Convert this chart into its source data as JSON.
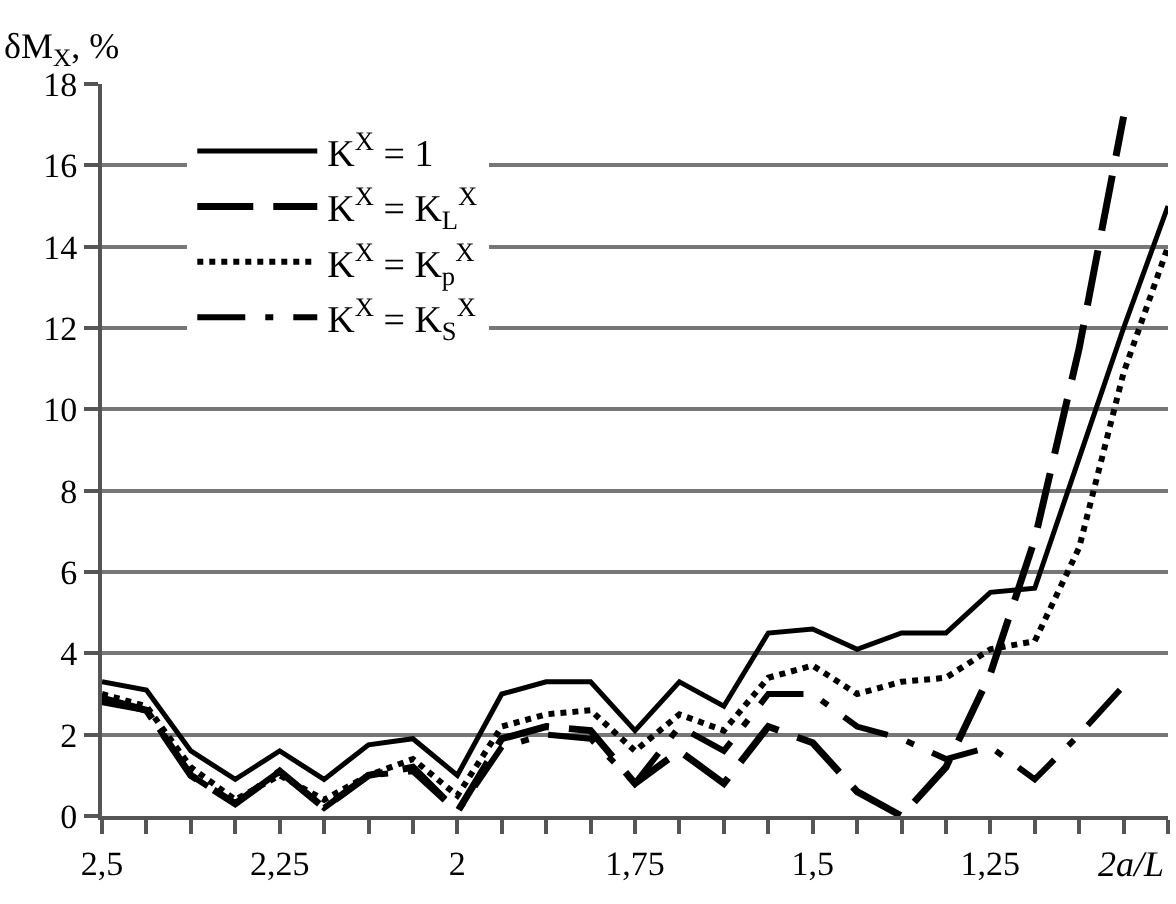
{
  "chart_data": {
    "type": "line",
    "ylabel": "δM$_{X}$, %",
    "xlabel": "2a/L",
    "x": [
      2.5,
      2.4375,
      2.375,
      2.3125,
      2.25,
      2.1875,
      2.125,
      2.0625,
      2.0,
      1.9375,
      1.875,
      1.8125,
      1.75,
      1.6875,
      1.625,
      1.5625,
      1.5,
      1.4375,
      1.375,
      1.3125,
      1.25,
      1.1875,
      1.125,
      1.0625,
      1.0
    ],
    "series": [
      {
        "name": "K$^{X}$ = 1",
        "color": "#000000",
        "line_style": "solid",
        "values": [
          3.3,
          3.1,
          1.6,
          0.9,
          1.6,
          0.9,
          1.75,
          1.9,
          1.0,
          3.0,
          3.3,
          3.3,
          2.1,
          3.3,
          2.7,
          4.5,
          4.6,
          4.1,
          4.5,
          4.5,
          5.5,
          5.6,
          8.8,
          12.0,
          15.0
        ]
      },
      {
        "name": "K$^{X}$ = K$_{L}$$^{X}$",
        "color": "#000000",
        "line_style": "dashed",
        "values": [
          2.9,
          2.6,
          1.0,
          0.3,
          1.1,
          0.2,
          1.0,
          1.2,
          0.1,
          1.9,
          2.2,
          2.1,
          0.8,
          1.6,
          0.8,
          2.2,
          1.8,
          0.6,
          0.0,
          1.2,
          3.5,
          6.8,
          11.5,
          17.2,
          null
        ]
      },
      {
        "name": "K$^{X}$ = K$_{p}$$^{X}$",
        "color": "#000000",
        "line_style": "dotted",
        "values": [
          3.0,
          2.7,
          1.2,
          0.4,
          1.0,
          0.4,
          1.0,
          1.4,
          0.5,
          2.2,
          2.5,
          2.6,
          1.6,
          2.5,
          2.1,
          3.4,
          3.7,
          3.0,
          3.3,
          3.4,
          4.1,
          4.3,
          6.6,
          10.9,
          14.0
        ]
      },
      {
        "name": "K$^{X}$ = K$_{S}$$^{X}$",
        "color": "#000000",
        "line_style": "dashdot",
        "values": [
          2.8,
          2.6,
          1.0,
          0.3,
          1.1,
          0.2,
          1.0,
          1.1,
          0.1,
          1.7,
          2.0,
          1.9,
          0.8,
          2.2,
          1.6,
          3.0,
          3.0,
          2.2,
          1.9,
          1.4,
          1.7,
          0.9,
          2.0,
          3.2,
          null
        ]
      }
    ],
    "xlim": [
      2.5,
      1.0
    ],
    "xticks": [
      {
        "value": 2.5,
        "label": "2,5"
      },
      {
        "value": 2.4375,
        "label": null
      },
      {
        "value": 2.375,
        "label": null
      },
      {
        "value": 2.3125,
        "label": null
      },
      {
        "value": 2.25,
        "label": "2,25"
      },
      {
        "value": 2.1875,
        "label": null
      },
      {
        "value": 2.125,
        "label": null
      },
      {
        "value": 2.0625,
        "label": null
      },
      2,
      {
        "value": 1.9375,
        "label": null
      },
      {
        "value": 1.875,
        "label": null
      },
      {
        "value": 1.8125,
        "label": null
      },
      {
        "value": 1.75,
        "label": "1,75"
      },
      {
        "value": 1.6875,
        "label": null
      },
      {
        "value": 1.625,
        "label": null
      },
      {
        "value": 1.5625,
        "label": null
      },
      {
        "value": 1.5,
        "label": "1,5"
      },
      {
        "value": 1.4375,
        "label": null
      },
      {
        "value": 1.375,
        "label": null
      },
      {
        "value": 1.3125,
        "label": null
      },
      {
        "value": 1.25,
        "label": "1,25"
      },
      {
        "value": 1.1875,
        "label": null
      },
      {
        "value": 1.125,
        "label": null
      },
      {
        "value": 1.0625,
        "label": null
      },
      {
        "value": 1.0,
        "label": null
      }
    ],
    "ylim": [
      0,
      18
    ],
    "yticks": [
      0,
      2,
      4,
      6,
      8,
      10,
      12,
      14,
      16,
      18
    ],
    "grid": "y",
    "legend": "top left",
    "marker": "none"
  }
}
